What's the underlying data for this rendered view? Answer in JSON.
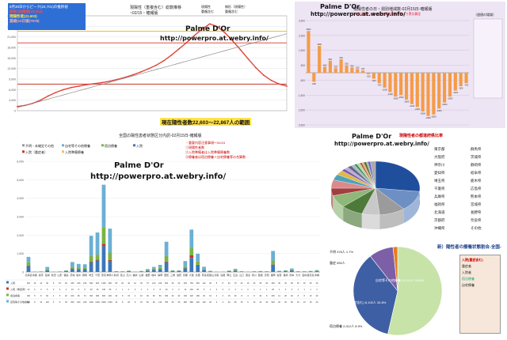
{
  "panels": {
    "cumulative": {
      "title": "現陽性（重複含む）総数推移",
      "subtitle": "~02/15・確報版",
      "legend": [
        "現陽性",
        "線形（現陽性）",
        "重複含む",
        "重複含む"
      ],
      "info_box": [
        "8月30日からピーク(24,701)の推移値",
        "直線1段階値(19,304)",
        "現陽性者(22,603)",
        "直線(23日値(7578)"
      ],
      "watermark_name": "Palme D'Or",
      "watermark_url": "http://powerpro.at.webry.info/",
      "caption": "現在陽性者数22,603～22,867人の範囲"
    },
    "daily": {
      "title": "現陽性者の日・週別増減数-02月15日-確報版",
      "note": "元の日週値と、各公表の最新値陽性数より累計算定",
      "legend_right": "（週値の増減）",
      "watermark_name": "Palme D'Or",
      "watermark_url": "http://powerpro.at.webry.info/"
    },
    "prefecture": {
      "title": "全国の陽性患者状態区分内訳-02月15日-確報版",
      "legend": [
        "不明・未確定その他",
        "自宅等その他療養",
        "宿泊療養",
        "入院",
        "入院（重症者）",
        "入院準備療養"
      ],
      "notes": [
        "・重要内容注意事項～02/15",
        "①現陽性者数",
        "②入院準備者は入院準備療養数",
        "③療養者は宿泊療養＋自宅療養等の合算数"
      ],
      "watermark_name": "Palme D'Or",
      "watermark_url": "http://powerpro.at.webry.info/"
    },
    "pie_top": {
      "title": "現陽性者の都道府県比率",
      "watermark_name": "Palme D'Or",
      "watermark_url": "http://powerpro.at.webry.info/",
      "labels": [
        "東京都",
        "大阪府",
        "神奈川",
        "愛知県",
        "埼玉県",
        "千葉県",
        "兵庫県",
        "福岡県",
        "北海道",
        "京都府",
        "沖縄県",
        "群馬県",
        "茨城県",
        "静岡県",
        "岐阜県",
        "栃木県",
        "広島県",
        "熊本県",
        "宮城県",
        "長野県",
        "奈良県",
        "その他"
      ]
    },
    "pie_bottom": {
      "title": "新）陽性者の療養状態割合-全国-",
      "labels": [
        {
          "text": "自宅等その他療養 12,113人 53.6%"
        },
        {
          "text": "入院 (重症含む) 8,100人 35.8%"
        },
        {
          "text": "宿泊療養 2,012人 8.9%"
        },
        {
          "text": "不明 378人 1.7%"
        },
        {
          "text": "重症 559人"
        }
      ],
      "side_box": [
        "入院(重症含む)",
        "重症者",
        "入院者",
        "宿泊療養",
        "自宅療養"
      ]
    }
  },
  "chart_data": [
    {
      "type": "line",
      "title": "現陽性（重複含む）総数推移",
      "series": [
        {
          "name": "現陽性",
          "values": [
            1200,
            1500,
            2100,
            3000,
            4200,
            5200,
            6000,
            6600,
            7000,
            7400,
            7700,
            8000,
            8400,
            8900,
            9500,
            10200,
            11000,
            11900,
            12900,
            14200,
            15800,
            17600,
            19400,
            21400,
            23200,
            24701,
            23900,
            22100,
            19800,
            17300,
            14700,
            12200,
            10100,
            8600,
            7600,
            7000
          ]
        },
        {
          "name": "線形（現陽性）",
          "values": [
            900,
            1500,
            2100,
            2700,
            3300,
            3900,
            4500,
            5100,
            5700,
            6300,
            6900,
            7500,
            8100,
            8700,
            9300,
            9900,
            10500,
            11100,
            11700,
            12300,
            12900,
            13500,
            14100,
            14700,
            15300,
            15900,
            16500,
            17100,
            17700,
            18300,
            18900,
            19500,
            20100,
            20700,
            21300,
            21900
          ]
        }
      ],
      "ylim": [
        0,
        27000
      ],
      "reference_lines": [
        22603,
        19304,
        7578
      ]
    },
    {
      "type": "bar",
      "title": "現陽性者の日・週別増減数-02月15日-確報版",
      "values": [
        2800,
        -600,
        1800,
        400,
        800,
        300,
        900,
        500,
        350,
        250,
        150,
        -100,
        -400,
        -700,
        -1000,
        -1300,
        -1600,
        -1500,
        -1800,
        -2100,
        -2300,
        -2600,
        -2900,
        -2800,
        -2400,
        -2000,
        -1600,
        -1200,
        -900,
        -700
      ],
      "ylim": [
        -3500,
        3500
      ]
    },
    {
      "type": "bar",
      "title": "全国の陽性患者状態区分内訳-02月15日-確報版",
      "categories": [
        "北海道",
        "青森",
        "岩手",
        "宮城",
        "秋田",
        "山形",
        "福島",
        "茨城",
        "栃木",
        "群馬",
        "埼玉",
        "千葉",
        "東京",
        "神奈川",
        "新潟",
        "富山",
        "石川",
        "福井",
        "山梨",
        "長野",
        "岐阜",
        "静岡",
        "愛知",
        "三重",
        "滋賀",
        "京都",
        "大阪",
        "兵庫",
        "奈良",
        "和歌山",
        "鳥取",
        "島根",
        "岡山",
        "広島",
        "山口",
        "徳島",
        "香川",
        "愛媛",
        "高知",
        "福岡",
        "佐賀",
        "長崎",
        "熊本",
        "大分",
        "宮崎",
        "鹿児島",
        "沖縄"
      ],
      "series": [
        {
          "name": "入院",
          "values": [
            320,
            10,
            12,
            90,
            5,
            15,
            40,
            180,
            150,
            160,
            520,
            620,
            1400,
            600,
            25,
            20,
            40,
            10,
            30,
            70,
            120,
            160,
            520,
            40,
            40,
            200,
            760,
            360,
            110,
            30,
            5,
            8,
            40,
            70,
            20,
            10,
            20,
            30,
            20,
            400,
            30,
            40,
            90,
            20,
            20,
            30,
            40
          ]
        },
        {
          "name": "入院（重症者）",
          "values": [
            20,
            0,
            0,
            5,
            0,
            0,
            2,
            10,
            8,
            8,
            40,
            40,
            130,
            50,
            1,
            1,
            2,
            0,
            1,
            3,
            6,
            8,
            40,
            2,
            2,
            12,
            140,
            30,
            5,
            1,
            0,
            0,
            2,
            4,
            1,
            0,
            1,
            1,
            1,
            20,
            1,
            2,
            4,
            1,
            1,
            1,
            2
          ]
        },
        {
          "name": "宿泊療養",
          "values": [
            180,
            5,
            8,
            60,
            2,
            5,
            20,
            100,
            80,
            70,
            300,
            280,
            900,
            400,
            10,
            8,
            15,
            4,
            10,
            30,
            60,
            80,
            300,
            20,
            20,
            100,
            420,
            180,
            40,
            10,
            2,
            3,
            15,
            40,
            8,
            4,
            8,
            10,
            8,
            200,
            12,
            20,
            40,
            8,
            8,
            10,
            20
          ]
        },
        {
          "name": "自宅等その他療養",
          "values": [
            300,
            8,
            10,
            120,
            3,
            8,
            30,
            250,
            200,
            180,
            1100,
            1200,
            2300,
            1300,
            10,
            8,
            20,
            6,
            15,
            60,
            90,
            140,
            780,
            30,
            30,
            280,
            980,
            420,
            130,
            20,
            2,
            3,
            20,
            60,
            15,
            5,
            10,
            10,
            10,
            520,
            20,
            30,
            60,
            10,
            10,
            15,
            40
          ]
        }
      ],
      "ylim": [
        0,
        6000
      ]
    },
    {
      "type": "pie",
      "title": "現陽性者の都道府県比率",
      "values": [
        27.0,
        12.0,
        9.5,
        6.5,
        8.0,
        7.5,
        4.5,
        5.0,
        3.5,
        2.8,
        1.5,
        1.4,
        1.6,
        1.3,
        0.9,
        1.2,
        0.8,
        0.7,
        0.9,
        0.6,
        0.9,
        1.9
      ]
    },
    {
      "type": "pie",
      "title": "新）陽性者の療養状態割合-全国-",
      "values": [
        53.6,
        35.8,
        8.9,
        1.7
      ]
    }
  ],
  "colors": {
    "line_main": "#e0453a",
    "line_trend": "#8a8a8a",
    "bar_orange": "#f59b47",
    "hosp": "#3a78b8",
    "severe": "#c0392b",
    "hotel": "#7cb342",
    "home": "#6ab0d4"
  }
}
